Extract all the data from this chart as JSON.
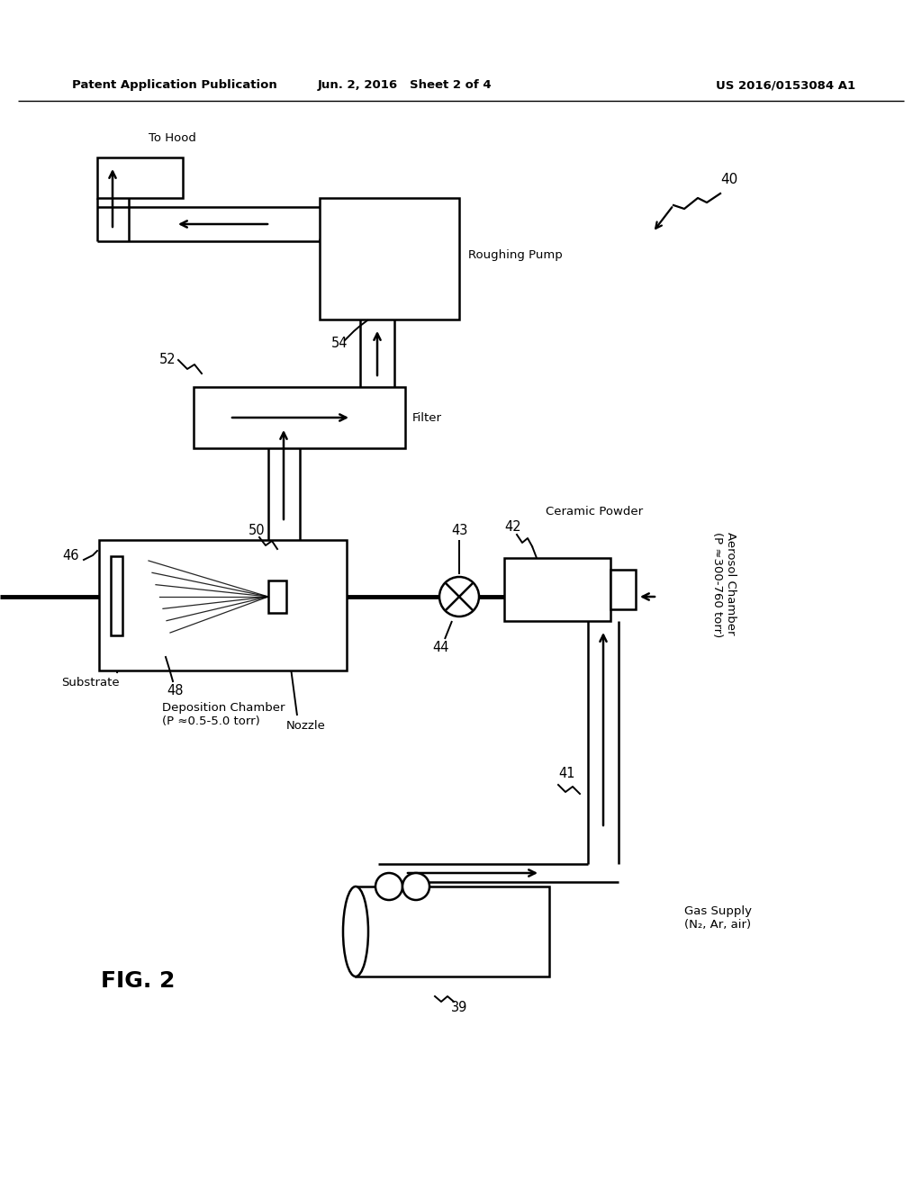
{
  "bg": "#ffffff",
  "lc": "#000000",
  "header_left": "Patent Application Publication",
  "header_mid": "Jun. 2, 2016   Sheet 2 of 4",
  "header_right": "US 2016/0153084 A1",
  "fig_label": "FIG. 2",
  "label_40": "40",
  "label_39": "39",
  "label_41": "41",
  "label_42": "42",
  "label_43": "43",
  "label_44": "44",
  "label_46": "46",
  "label_48": "48",
  "label_50": "50",
  "label_52": "52",
  "label_54": "54",
  "text_gas_supply": "Gas Supply\n(N₂, Ar, air)",
  "text_aerosol": "Aerosol Chamber\n(P ≈300-760 torr)",
  "text_ceramic": "Ceramic Powder",
  "text_dep_chamber": "Deposition Chamber\n(P ≈0.5-5.0 torr)",
  "text_substrate": "Substrate",
  "text_nozzle": "Nozzle",
  "text_filter": "Filter",
  "text_pump": "Roughing Pump",
  "text_hood": "To Hood"
}
